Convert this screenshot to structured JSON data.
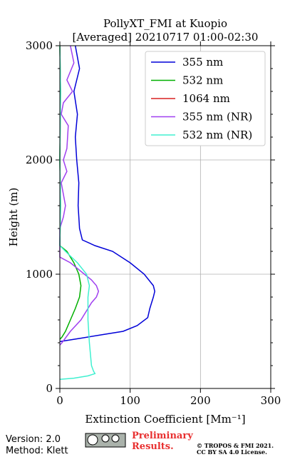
{
  "chart_data": {
    "type": "line",
    "title": [
      "PollyXT_FMI at Kuopio",
      "[Averaged] 20210717 01:00-02:30"
    ],
    "xlabel": "Extinction Coefficient [Mm⁻¹]",
    "ylabel": "Height (m)",
    "xlim": [
      0,
      300
    ],
    "ylim": [
      0,
      3000
    ],
    "xticks": [
      0,
      100,
      200,
      300
    ],
    "yticks": [
      0,
      1000,
      2000,
      3000
    ],
    "grid": true,
    "legend": "upper right",
    "series": [
      {
        "name": "355 nm",
        "color": "#0000d8",
        "x": [
          22,
          28,
          20,
          25,
          22,
          24,
          27,
          26,
          28,
          32,
          50,
          75,
          100,
          120,
          133,
          135,
          133,
          128,
          125,
          110,
          90,
          60,
          30,
          10,
          0
        ],
        "y": [
          3000,
          2800,
          2600,
          2400,
          2200,
          2000,
          1800,
          1600,
          1400,
          1300,
          1250,
          1200,
          1100,
          1000,
          900,
          850,
          800,
          700,
          620,
          550,
          500,
          470,
          440,
          420,
          410
        ]
      },
      {
        "name": "532 nm",
        "color": "#00b000",
        "x": [
          0,
          1,
          0,
          1,
          0,
          10,
          20,
          27,
          30,
          28,
          22,
          15,
          8,
          3,
          0
        ],
        "y": [
          3000,
          2600,
          2000,
          1600,
          1250,
          1200,
          1100,
          1000,
          900,
          800,
          700,
          600,
          500,
          450,
          430
        ]
      },
      {
        "name": "1064 nm",
        "color": "#d82020",
        "x": [],
        "y": []
      },
      {
        "name": "355 nm (NR)",
        "color": "#a040f0",
        "x": [
          15,
          20,
          10,
          18,
          5,
          2,
          12,
          10,
          5,
          10,
          2,
          8,
          5,
          0,
          0,
          15,
          35,
          45,
          52,
          55,
          52,
          45,
          40,
          30,
          15,
          3,
          0
        ],
        "y": [
          3000,
          2850,
          2700,
          2600,
          2500,
          2400,
          2300,
          2100,
          2000,
          1900,
          1800,
          1600,
          1500,
          1400,
          1150,
          1100,
          1000,
          950,
          900,
          850,
          800,
          750,
          700,
          600,
          500,
          400,
          380
        ]
      },
      {
        "name": "532 nm (NR)",
        "color": "#40f0d0",
        "x": [
          0,
          1,
          0,
          1,
          0,
          8,
          25,
          38,
          42,
          40,
          40,
          42,
          45,
          48,
          50,
          40,
          20,
          0
        ],
        "y": [
          3000,
          2600,
          2000,
          1600,
          1250,
          1200,
          1100,
          1000,
          900,
          800,
          600,
          400,
          200,
          150,
          130,
          110,
          90,
          80
        ]
      }
    ]
  },
  "footer": {
    "version": "Version: 2.0",
    "method": "Method: Klett",
    "preliminary": [
      "Preliminary",
      "Results."
    ],
    "license": [
      "© TROPOS & FMI 2021.",
      "CC BY SA 4.0 License."
    ]
  }
}
